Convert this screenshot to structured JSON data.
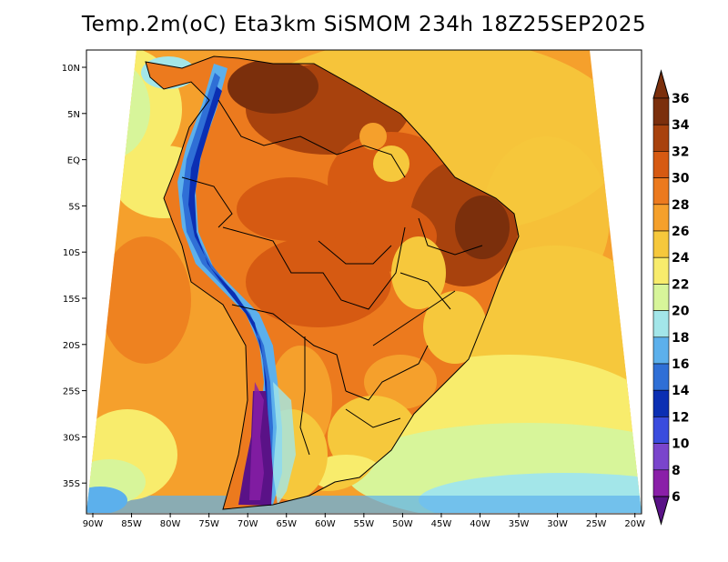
{
  "title": "Temp.2m(oC) Eta3km SiSMOM 234h 18Z25SEP2025",
  "longitude_labels": [
    "90W",
    "85W",
    "80W",
    "75W",
    "70W",
    "65W",
    "60W",
    "55W",
    "50W",
    "45W",
    "40W",
    "35W",
    "30W",
    "25W",
    "20W"
  ],
  "latitude_labels": [
    "10N",
    "5N",
    "EQ",
    "5S",
    "10S",
    "15S",
    "20S",
    "25S",
    "30S",
    "35S"
  ],
  "colorbar": {
    "labels": [
      "36",
      "34",
      "32",
      "30",
      "28",
      "26",
      "24",
      "22",
      "20",
      "18",
      "16",
      "14",
      "12",
      "10",
      "8",
      "6"
    ],
    "colors": [
      "#7b2f0c",
      "#a8420d",
      "#d65a12",
      "#ec7a1e",
      "#f5a02c",
      "#f6c83c",
      "#f8ec6c",
      "#d7f59a",
      "#a3e6e9",
      "#5cb0ec",
      "#2f6fd6",
      "#0b2fb3",
      "#3a4cde",
      "#7a45cc",
      "#8a1fa8",
      "#5a1287"
    ]
  }
}
